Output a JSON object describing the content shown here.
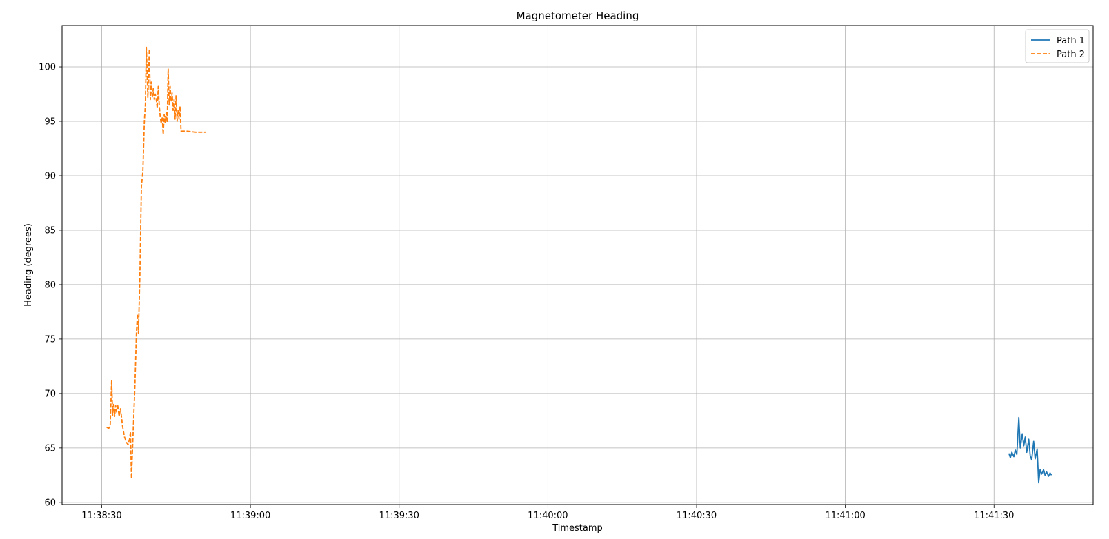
{
  "chart_data": {
    "type": "line",
    "title": "Magnetometer Heading",
    "xlabel": "Timestamp",
    "ylabel": "Heading (degrees)",
    "x_ticks": [
      "11:38:30",
      "11:39:00",
      "11:39:30",
      "11:40:00",
      "11:40:30",
      "11:41:00",
      "11:41:30"
    ],
    "y_ticks": [
      60,
      65,
      70,
      75,
      80,
      85,
      90,
      95,
      100
    ],
    "xlim": [
      "11:38:22",
      "11:41:50"
    ],
    "ylim": [
      59.8,
      103.8
    ],
    "grid": true,
    "legend_position": "top-right",
    "series": [
      {
        "name": "Path 1",
        "color": "#1f77b4",
        "line_style": "solid",
        "x": [
          "11:41:33.0",
          "11:41:33.3",
          "11:41:33.6",
          "11:41:34.0",
          "11:41:34.3",
          "11:41:34.6",
          "11:41:35.0",
          "11:41:35.3",
          "11:41:35.7",
          "11:41:36.0",
          "11:41:36.3",
          "11:41:36.6",
          "11:41:37.0",
          "11:41:37.3",
          "11:41:37.6",
          "11:41:38.0",
          "11:41:38.3",
          "11:41:38.7",
          "11:41:39.0",
          "11:41:39.3",
          "11:41:39.6",
          "11:41:40.0",
          "11:41:40.3",
          "11:41:40.6",
          "11:41:41.0",
          "11:41:41.3",
          "11:41:41.6"
        ],
        "y": [
          64.5,
          64.1,
          64.6,
          64.2,
          64.8,
          64.4,
          67.8,
          65.0,
          66.3,
          65.2,
          66.0,
          64.6,
          65.8,
          64.3,
          63.9,
          65.6,
          64.0,
          64.9,
          61.8,
          63.0,
          62.6,
          63.0,
          62.5,
          62.8,
          62.4,
          62.7,
          62.5
        ]
      },
      {
        "name": "Path 2",
        "color": "#ff7f0e",
        "line_style": "dashed",
        "x": [
          "11:38:31.0",
          "11:38:31.4",
          "11:38:31.7",
          "11:38:32.0",
          "11:38:32.2",
          "11:38:32.4",
          "11:38:32.6",
          "11:38:32.8",
          "11:38:33.0",
          "11:38:33.2",
          "11:38:33.5",
          "11:38:33.8",
          "11:38:34.2",
          "11:38:34.6",
          "11:38:35.0",
          "11:38:35.3",
          "11:38:35.6",
          "11:38:35.8",
          "11:38:36.0",
          "11:38:36.4",
          "11:38:36.7",
          "11:38:37.0",
          "11:38:37.2",
          "11:38:37.4",
          "11:38:37.7",
          "11:38:38.0",
          "11:38:38.3",
          "11:38:38.6",
          "11:38:38.8",
          "11:38:39.0",
          "11:38:39.3",
          "11:38:39.6",
          "11:38:39.8",
          "11:38:40.0",
          "11:38:40.2",
          "11:38:40.4",
          "11:38:40.6",
          "11:38:40.8",
          "11:38:41.0",
          "11:38:41.2",
          "11:38:41.4",
          "11:38:41.6",
          "11:38:41.8",
          "11:38:42.0",
          "11:38:42.2",
          "11:38:42.4",
          "11:38:42.6",
          "11:38:42.8",
          "11:38:43.0",
          "11:38:43.2",
          "11:38:43.4",
          "11:38:43.6",
          "11:38:43.8",
          "11:38:44.0",
          "11:38:44.2",
          "11:38:44.4",
          "11:38:44.6",
          "11:38:44.8",
          "11:38:45.0",
          "11:38:45.2",
          "11:38:45.4",
          "11:38:45.6",
          "11:38:45.8",
          "11:38:46.0",
          "11:38:46.5",
          "11:38:47.0",
          "11:38:48.0",
          "11:38:49.0",
          "11:38:50.0",
          "11:38:51.0"
        ],
        "y": [
          66.9,
          66.8,
          67.0,
          71.2,
          68.0,
          69.0,
          67.9,
          68.9,
          68.3,
          69.0,
          67.9,
          68.6,
          67.0,
          66.0,
          65.5,
          65.3,
          65.8,
          66.5,
          62.2,
          67.2,
          70.8,
          75.6,
          77.3,
          75.5,
          80.9,
          89.0,
          90.4,
          95.0,
          96.5,
          101.8,
          97.2,
          101.6,
          97.0,
          98.6,
          97.2,
          98.0,
          97.0,
          97.5,
          97.0,
          96.2,
          98.2,
          96.5,
          95.4,
          94.8,
          95.4,
          93.8,
          95.6,
          94.9,
          95.8,
          94.9,
          99.8,
          96.5,
          98.2,
          96.8,
          97.6,
          96.0,
          97.0,
          95.2,
          97.4,
          95.0,
          96.0,
          95.2,
          96.4,
          94.1,
          94.1,
          94.1,
          94.05,
          94.0,
          94.0,
          94.0
        ]
      }
    ]
  }
}
